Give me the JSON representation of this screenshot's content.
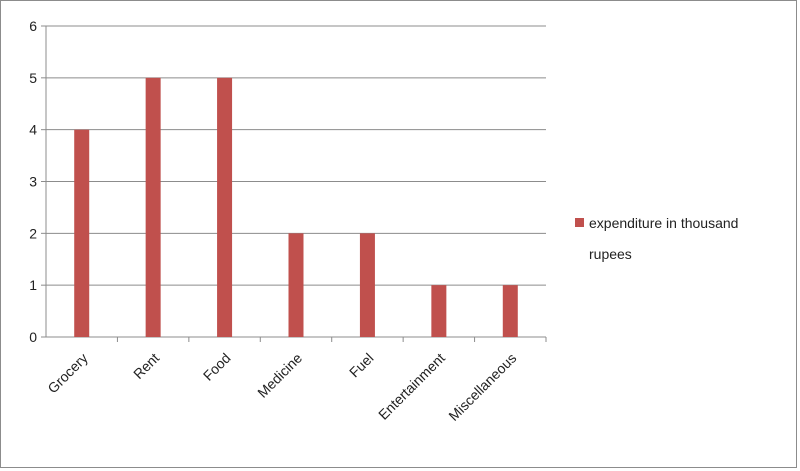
{
  "chart_data": {
    "type": "bar",
    "categories": [
      "Grocery",
      "Rent",
      "Food",
      "Medicine",
      "Fuel",
      "Entertainment",
      "Miscellaneous"
    ],
    "series": [
      {
        "name": "expenditure  in thousand rupees",
        "color": "#c0504d",
        "values": [
          4,
          5,
          5,
          2,
          2,
          1,
          1
        ]
      }
    ],
    "ylim": [
      0,
      6
    ],
    "yticks": [
      0,
      1,
      2,
      3,
      4,
      5,
      6
    ],
    "grid": true,
    "legend_position": "right",
    "legend_lines": [
      "expenditure  in thousand",
      "rupees"
    ]
  }
}
